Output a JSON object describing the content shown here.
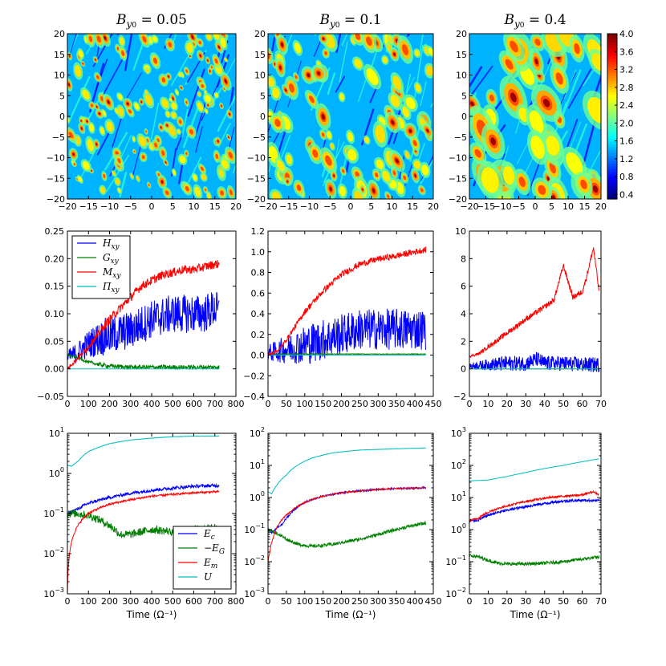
{
  "colors": {
    "blue": "#0000ff",
    "green": "#007f00",
    "red": "#ff0000",
    "cyan": "#00bfbf"
  },
  "chart_data": [
    {
      "type": "heatmap",
      "title": "B_y0 = 0.05",
      "title_prefix": "B",
      "title_sub": "y",
      "title_sub2": "0",
      "title_value": "= 0.05",
      "xlim": [
        -20,
        20
      ],
      "ylim": [
        -20,
        20
      ],
      "xticks": [
        "−20",
        "−15",
        "−10",
        "−5",
        "0",
        "5",
        "10",
        "15",
        "20"
      ],
      "yticks": [
        "−20",
        "−15",
        "−10",
        "−5",
        "0",
        "5",
        "10",
        "15",
        "20"
      ]
    },
    {
      "type": "heatmap",
      "title": "B_y0 = 0.1",
      "title_prefix": "B",
      "title_sub": "y",
      "title_sub2": "0",
      "title_value": "= 0.1",
      "xlim": [
        -20,
        20
      ],
      "ylim": [
        -20,
        20
      ],
      "xticks": [
        "−20",
        "−15",
        "−10",
        "−5",
        "0",
        "5",
        "10",
        "15",
        "20"
      ],
      "yticks": [
        "−20",
        "−15",
        "−10",
        "−5",
        "0",
        "5",
        "10",
        "15",
        "20"
      ]
    },
    {
      "type": "heatmap",
      "title": "B_y0 = 0.4",
      "title_prefix": "B",
      "title_sub": "y",
      "title_sub2": "0",
      "title_value": "= 0.4",
      "xlim": [
        -20,
        20
      ],
      "ylim": [
        -20,
        20
      ],
      "xticks": [
        "−20",
        "−15",
        "−10",
        "−5",
        "0",
        "5",
        "10",
        "15",
        "20"
      ],
      "yticks": [
        "−20",
        "−15",
        "−10",
        "−5",
        "0",
        "5",
        "10",
        "15",
        "20"
      ],
      "colorbar": {
        "min": 0.3,
        "max": 4.0,
        "ticks": [
          "0.4",
          "0.8",
          "1.2",
          "1.6",
          "2.0",
          "2.4",
          "2.8",
          "3.2",
          "3.6",
          "4.0"
        ]
      }
    },
    {
      "type": "line",
      "xlim": [
        0,
        800
      ],
      "ylim": [
        -0.05,
        0.25
      ],
      "xticks": [
        "0",
        "100",
        "200",
        "300",
        "400",
        "500",
        "600",
        "700",
        "800"
      ],
      "yticks": [
        "−0.05",
        "0.00",
        "0.05",
        "0.10",
        "0.15",
        "0.20",
        "0.25"
      ],
      "legend": {
        "position": "top-left",
        "entries": [
          "H_xy",
          "G_xy",
          "M_xy",
          "Π_xy"
        ]
      },
      "series": [
        {
          "name": "H_xy",
          "color": "blue",
          "x": [
            0,
            50,
            100,
            150,
            200,
            250,
            300,
            350,
            400,
            450,
            500,
            550,
            600,
            650,
            700,
            720
          ],
          "values": [
            0.02,
            0.03,
            0.045,
            0.055,
            0.06,
            0.065,
            0.07,
            0.08,
            0.09,
            0.095,
            0.1,
            0.1,
            0.1,
            0.1,
            0.11,
            0.1
          ],
          "noise": 0.035
        },
        {
          "name": "G_xy",
          "color": "green",
          "x": [
            0,
            50,
            100,
            150,
            200,
            250,
            300,
            400,
            500,
            600,
            720
          ],
          "values": [
            0.025,
            0.02,
            0.012,
            0.008,
            0.005,
            0.004,
            0.003,
            0.003,
            0.003,
            0.003,
            0.003
          ],
          "noise": 0.004
        },
        {
          "name": "M_xy",
          "color": "red",
          "x": [
            0,
            50,
            100,
            150,
            200,
            250,
            300,
            350,
            400,
            450,
            500,
            550,
            600,
            650,
            700,
            720
          ],
          "values": [
            0.0,
            0.02,
            0.04,
            0.065,
            0.09,
            0.11,
            0.13,
            0.15,
            0.16,
            0.17,
            0.175,
            0.18,
            0.18,
            0.185,
            0.19,
            0.19
          ],
          "noise": 0.008
        },
        {
          "name": "Π_xy",
          "color": "cyan",
          "x": [
            0,
            720
          ],
          "values": [
            0.0,
            0.0
          ],
          "noise": 0
        }
      ]
    },
    {
      "type": "line",
      "xlim": [
        0,
        450
      ],
      "ylim": [
        -0.4,
        1.2
      ],
      "xticks": [
        "0",
        "50",
        "100",
        "150",
        "200",
        "250",
        "300",
        "350",
        "400",
        "450"
      ],
      "yticks": [
        "−0.4",
        "−0.2",
        "0.0",
        "0.2",
        "0.4",
        "0.6",
        "0.8",
        "1.0",
        "1.2"
      ],
      "series": [
        {
          "name": "",
          "color": "blue",
          "x": [
            0,
            30,
            60,
            100,
            150,
            200,
            250,
            300,
            350,
            400,
            430
          ],
          "values": [
            0.02,
            0.04,
            0.07,
            0.1,
            0.15,
            0.2,
            0.25,
            0.25,
            0.25,
            0.25,
            0.25
          ],
          "noise": 0.2
        },
        {
          "name": "",
          "color": "green",
          "x": [
            0,
            430
          ],
          "values": [
            0.01,
            0.01
          ],
          "noise": 0.003
        },
        {
          "name": "",
          "color": "red",
          "x": [
            0,
            30,
            60,
            100,
            150,
            200,
            250,
            300,
            350,
            400,
            430
          ],
          "values": [
            0.0,
            0.05,
            0.2,
            0.42,
            0.62,
            0.78,
            0.88,
            0.93,
            0.96,
            1.0,
            1.02
          ],
          "noise": 0.03
        },
        {
          "name": "",
          "color": "cyan",
          "x": [
            0,
            430
          ],
          "values": [
            0.0,
            0.0
          ],
          "noise": 0
        }
      ]
    },
    {
      "type": "line",
      "xlim": [
        0,
        70
      ],
      "ylim": [
        -2,
        10
      ],
      "xticks": [
        "0",
        "10",
        "20",
        "30",
        "40",
        "50",
        "60",
        "70"
      ],
      "yticks": [
        "−2",
        "0",
        "2",
        "4",
        "6",
        "8",
        "10"
      ],
      "series": [
        {
          "name": "",
          "color": "blue",
          "x": [
            0,
            10,
            20,
            30,
            36,
            40,
            50,
            60,
            69
          ],
          "values": [
            0.2,
            0.3,
            0.4,
            0.4,
            0.7,
            0.4,
            0.4,
            0.3,
            0.3
          ],
          "noise": 0.55
        },
        {
          "name": "",
          "color": "green",
          "x": [
            0,
            69
          ],
          "values": [
            0.0,
            0.0
          ],
          "noise": 0
        },
        {
          "name": "",
          "color": "red",
          "x": [
            0,
            5,
            10,
            20,
            30,
            40,
            45,
            50,
            55,
            60,
            62,
            66,
            69
          ],
          "values": [
            0.9,
            1.1,
            1.6,
            2.6,
            3.6,
            4.5,
            5.0,
            7.5,
            5.2,
            5.6,
            6.5,
            8.8,
            5.6
          ],
          "noise": 0.2
        },
        {
          "name": "",
          "color": "cyan",
          "x": [
            0,
            69
          ],
          "values": [
            0.0,
            0.0
          ],
          "noise": 0
        }
      ]
    },
    {
      "type": "line",
      "scale": "log",
      "xlim": [
        0,
        800
      ],
      "ylim_exp": [
        -3,
        1
      ],
      "xticks": [
        "0",
        "100",
        "200",
        "300",
        "400",
        "500",
        "600",
        "700",
        "800"
      ],
      "xlabel": "Time (Ω⁻¹)",
      "legend": {
        "position": "bottom-right",
        "entries": [
          "E_c",
          "−E_G",
          "E_m",
          "U"
        ]
      },
      "series": [
        {
          "name": "E_c",
          "color": "blue",
          "x": [
            0,
            50,
            100,
            200,
            300,
            400,
            500,
            600,
            720
          ],
          "values": [
            0.1,
            0.13,
            0.18,
            0.25,
            0.32,
            0.38,
            0.43,
            0.48,
            0.5
          ],
          "noise": 0.08
        },
        {
          "name": "−E_G",
          "color": "green",
          "x": [
            0,
            50,
            100,
            150,
            200,
            250,
            300,
            400,
            500,
            600,
            720
          ],
          "values": [
            0.1,
            0.1,
            0.09,
            0.07,
            0.05,
            0.03,
            0.03,
            0.04,
            0.035,
            0.04,
            0.045
          ],
          "noise": 0.2
        },
        {
          "name": "E_m",
          "color": "red",
          "x": [
            0,
            5,
            15,
            30,
            60,
            100,
            200,
            300,
            400,
            500,
            600,
            720
          ],
          "values": [
            0.001,
            0.005,
            0.015,
            0.03,
            0.06,
            0.1,
            0.17,
            0.22,
            0.27,
            0.3,
            0.33,
            0.35
          ],
          "noise": 0.05
        },
        {
          "name": "U",
          "color": "cyan",
          "x": [
            0,
            20,
            50,
            100,
            200,
            300,
            400,
            500,
            600,
            720
          ],
          "values": [
            1.6,
            1.5,
            2.0,
            3.5,
            5.5,
            6.8,
            7.6,
            8.2,
            8.5,
            8.5
          ],
          "noise": 0.01
        }
      ]
    },
    {
      "type": "line",
      "scale": "log",
      "xlim": [
        0,
        450
      ],
      "ylim_exp": [
        -3,
        2
      ],
      "xticks": [
        "0",
        "50",
        "100",
        "150",
        "200",
        "250",
        "300",
        "350",
        "400",
        "450"
      ],
      "xlabel": "Time (Ω⁻¹)",
      "series": [
        {
          "name": "",
          "color": "blue",
          "x": [
            0,
            10,
            20,
            40,
            60,
            100,
            150,
            200,
            250,
            300,
            350,
            430
          ],
          "values": [
            0.1,
            0.08,
            0.1,
            0.15,
            0.3,
            0.7,
            1.1,
            1.4,
            1.6,
            1.8,
            1.9,
            2.0
          ],
          "noise": 0.06
        },
        {
          "name": "",
          "color": "green",
          "x": [
            0,
            20,
            50,
            80,
            120,
            180,
            250,
            300,
            350,
            430
          ],
          "values": [
            0.1,
            0.08,
            0.05,
            0.035,
            0.03,
            0.035,
            0.05,
            0.07,
            0.1,
            0.16
          ],
          "noise": 0.1
        },
        {
          "name": "",
          "color": "red",
          "x": [
            0,
            5,
            15,
            30,
            60,
            100,
            150,
            200,
            250,
            300,
            350,
            430
          ],
          "values": [
            0.01,
            0.02,
            0.06,
            0.15,
            0.35,
            0.7,
            1.1,
            1.4,
            1.6,
            1.8,
            1.9,
            2.0
          ],
          "noise": 0.04
        },
        {
          "name": "",
          "color": "cyan",
          "x": [
            0,
            10,
            25,
            50,
            80,
            120,
            180,
            250,
            350,
            430
          ],
          "values": [
            1.5,
            1.3,
            2.5,
            5,
            10,
            17,
            25,
            30,
            33,
            35
          ],
          "noise": 0.01
        }
      ]
    },
    {
      "type": "line",
      "scale": "log",
      "xlim": [
        0,
        70
      ],
      "ylim_exp": [
        -2,
        3
      ],
      "xticks": [
        "0",
        "10",
        "20",
        "30",
        "40",
        "50",
        "60",
        "70"
      ],
      "xlabel": "Time (Ω⁻¹)",
      "series": [
        {
          "name": "",
          "color": "blue",
          "x": [
            0,
            5,
            10,
            20,
            30,
            40,
            50,
            60,
            69
          ],
          "values": [
            1.8,
            2.0,
            2.8,
            4.0,
            5.2,
            6.5,
            7.8,
            8.2,
            8.0
          ],
          "noise": 0.08
        },
        {
          "name": "",
          "color": "green",
          "x": [
            0,
            5,
            10,
            15,
            20,
            30,
            40,
            50,
            60,
            69
          ],
          "values": [
            0.16,
            0.14,
            0.11,
            0.09,
            0.085,
            0.085,
            0.09,
            0.1,
            0.12,
            0.14
          ],
          "noise": 0.1
        },
        {
          "name": "",
          "color": "red",
          "x": [
            0,
            5,
            10,
            20,
            30,
            40,
            50,
            60,
            66,
            69
          ],
          "values": [
            1.9,
            2.3,
            3.5,
            5.5,
            7.5,
            9.5,
            11,
            12,
            15,
            12
          ],
          "noise": 0.06
        },
        {
          "name": "",
          "color": "cyan",
          "x": [
            0,
            10,
            20,
            30,
            40,
            50,
            60,
            69
          ],
          "values": [
            33,
            35,
            45,
            60,
            80,
            100,
            130,
            160
          ],
          "noise": 0.005
        }
      ]
    }
  ]
}
